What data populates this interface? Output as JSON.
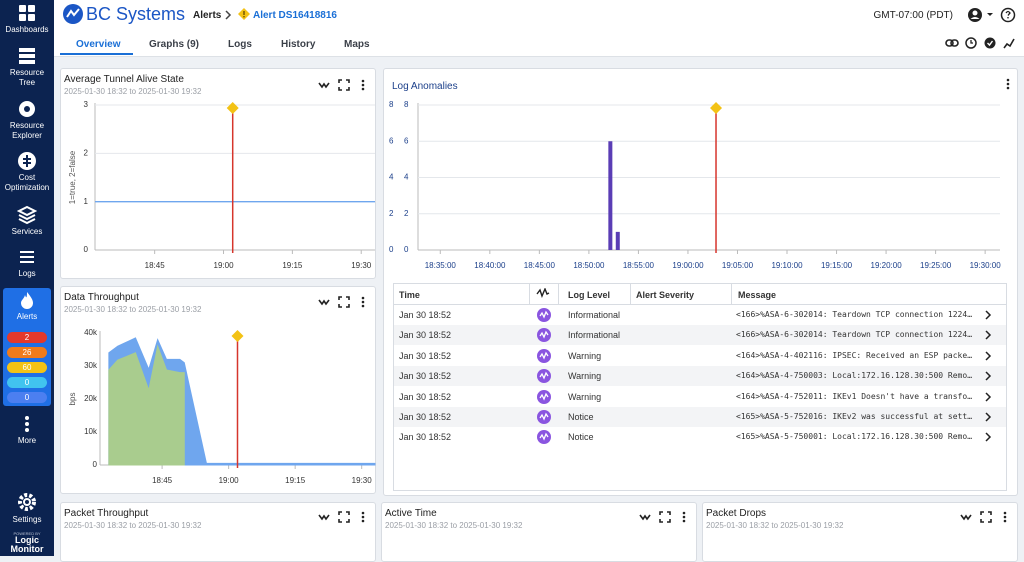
{
  "sidebar": {
    "items": [
      "Dashboards",
      "Resource Tree",
      "Resource Explorer",
      "Cost Optimization",
      "Services",
      "Logs",
      "Alerts",
      "More",
      "Settings"
    ],
    "alert_counts": [
      2,
      26,
      60,
      0,
      0
    ],
    "powered_by": "POWERED BY",
    "brand": "Logic Monitor"
  },
  "header": {
    "logo": "BC Systems",
    "breadcrumb": [
      "Alerts",
      "Alert DS16418816"
    ],
    "timezone": "GMT-07:00 (PDT)"
  },
  "tabs": [
    "Overview",
    "Graphs (9)",
    "Logs",
    "History",
    "Maps"
  ],
  "panels": {
    "tunnel": {
      "title": "Average Tunnel Alive State",
      "subtitle": "2025-01-30 18:32 to 2025-01-30 19:32",
      "chart_data": {
        "type": "line",
        "y_label": "1=true, 2=false",
        "x": [
          "18:32",
          "19:33"
        ],
        "series": [
          {
            "color": "#6fa6ee",
            "values": [
              1,
              1
            ]
          }
        ],
        "xlim": [
          "18:32",
          "19:33"
        ],
        "xticks": [
          "18:45",
          "19:00",
          "19:15",
          "19:30"
        ],
        "ylim": [
          0,
          3
        ],
        "yticks": [
          0,
          1,
          2,
          3
        ],
        "grid": true,
        "alert_at": "19:02"
      }
    },
    "anomalies": {
      "title": "Log Anomalies",
      "chart_data": {
        "type": "bar",
        "x": [
          "18:52:10",
          "18:52:55"
        ],
        "values": [
          6,
          1
        ],
        "color": "#5a3db5",
        "xlim": [
          "18:32:45",
          "19:31:30"
        ],
        "xticks": [
          "18:35:00",
          "18:40:00",
          "18:45:00",
          "18:50:00",
          "18:55:00",
          "19:00:00",
          "19:05:00",
          "19:10:00",
          "19:15:00",
          "19:20:00",
          "19:25:00",
          "19:30:00"
        ],
        "ylim": [
          0,
          8
        ],
        "yticks": [
          0,
          2,
          4,
          6,
          8
        ],
        "y2ticks": [
          0,
          2,
          4,
          6,
          8
        ],
        "grid": true,
        "alert_at": "19:02:50"
      },
      "table": {
        "columns": [
          "Time",
          "Log Level",
          "Alert Severity",
          "Message"
        ],
        "rows": [
          {
            "time": "Jan 30 18:52",
            "level": "Informational",
            "message": "<166>%ASA-6-302014: Teardown TCP connection 1224…"
          },
          {
            "time": "Jan 30 18:52",
            "level": "Informational",
            "message": "<166>%ASA-6-302014: Teardown TCP connection 1224…"
          },
          {
            "time": "Jan 30 18:52",
            "level": "Warning",
            "message": "<164>%ASA-4-402116: IPSEC: Received an ESP packe…"
          },
          {
            "time": "Jan 30 18:52",
            "level": "Warning",
            "message": "<164>%ASA-4-750003: Local:172.16.128.30:500 Remo…"
          },
          {
            "time": "Jan 30 18:52",
            "level": "Warning",
            "message": "<164>%ASA-4-752011: IKEv1 Doesn't have a transfo…"
          },
          {
            "time": "Jan 30 18:52",
            "level": "Notice",
            "message": "<165>%ASA-5-752016: IKEv2 was successful at sett…"
          },
          {
            "time": "Jan 30 18:52",
            "level": "Notice",
            "message": "<165>%ASA-5-750001: Local:172.16.128.30:500 Remo…"
          }
        ]
      }
    },
    "throughput": {
      "title": "Data Throughput",
      "subtitle": "2025-01-30 18:32 to 2025-01-30 19:32",
      "chart_data": {
        "type": "area",
        "y_label": "bps",
        "x": [
          "18:33",
          "18:35",
          "18:39",
          "18:42",
          "18:44",
          "18:46",
          "18:49",
          "18:50",
          "18:55",
          "19:33"
        ],
        "series": [
          {
            "color": "#6fa6ee",
            "values": [
              34000,
              36000,
              38500,
              29000,
              38000,
              32000,
              32000,
              31000,
              500,
              500
            ]
          },
          {
            "color": "#a9cc8e",
            "values": [
              28800,
              31800,
              34000,
              22700,
              36000,
              28800,
              28000,
              28000,
              null,
              null
            ]
          }
        ],
        "xlim": [
          "18:31",
          "19:33"
        ],
        "xticks": [
          "18:45",
          "19:00",
          "19:15",
          "19:30"
        ],
        "ylim": [
          0,
          40000
        ],
        "yticks": [
          0,
          {
            "value": 10000,
            "label": "10k"
          },
          {
            "value": 20000,
            "label": "20k"
          },
          {
            "value": 30000,
            "label": "30k"
          },
          {
            "value": 40000,
            "label": "40k"
          }
        ],
        "alert_at": "19:02"
      }
    },
    "bottom": [
      {
        "title": "Packet Throughput",
        "subtitle": "2025-01-30 18:32 to 2025-01-30 19:32"
      },
      {
        "title": "Active Time",
        "subtitle": "2025-01-30 18:32 to 2025-01-30 19:32"
      },
      {
        "title": "Packet Drops",
        "subtitle": "2025-01-30 18:32 to 2025-01-30 19:32"
      }
    ]
  }
}
